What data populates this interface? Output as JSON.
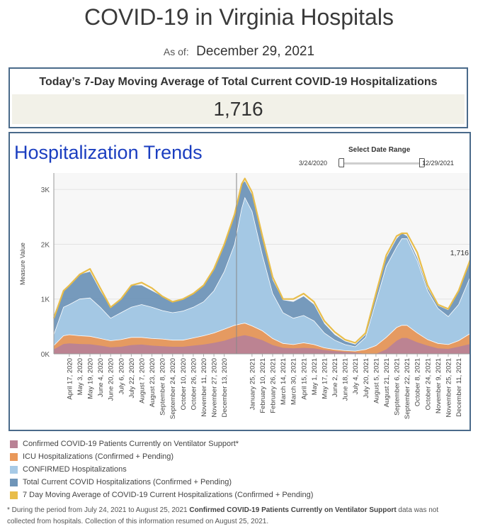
{
  "page": {
    "title": "COVID-19 in Virginia Hospitals",
    "as_of_label": "As of:",
    "as_of_date": "December 29, 2021"
  },
  "kpi": {
    "heading": "Today’s 7-Day Moving Average of Total Current COVID-19 Hospitalizations",
    "value": "1,716"
  },
  "trends": {
    "title": "Hospitalization Trends",
    "date_range": {
      "label": "Select Date Range",
      "start": "3/24/2020",
      "end": "12/29/2021"
    }
  },
  "footnote": {
    "prefix": "* During the period from July 24, 2021 to August 25, 2021 ",
    "bold": "Confirmed COVID-19 Patients Currently on Ventilator Support",
    "suffix": " data was not collected from hospitals. Collection of this information resumed on August 25, 2021."
  },
  "chart_data": {
    "type": "area",
    "ylabel": "Measure Value",
    "ylim": [
      0,
      3300
    ],
    "y_ticks": [
      {
        "value": 0,
        "label": "0K"
      },
      {
        "value": 1000,
        "label": "1K"
      },
      {
        "value": 2000,
        "label": "2K"
      },
      {
        "value": 3000,
        "label": "3K"
      }
    ],
    "x_ticks": [
      "April 17, 2020",
      "May 3, 2020",
      "May 19, 2020",
      "June 4, 2020",
      "June 20, 2020",
      "July 6, 2020",
      "July 22, 2020",
      "August 7, 2020",
      "August 23, 2020",
      "September 8, 2020",
      "September 24, 2020",
      "October 10, 2020",
      "October 26, 2020",
      "November 11, 2020",
      "November 27, 2020",
      "December 13, 2020",
      "January 25, 2021",
      "February 10, 2021",
      "February 26, 2021",
      "March 14, 2021",
      "March 30, 2021",
      "April 15, 2021",
      "May 1, 2021",
      "May 17, 2021",
      "June 2, 2021",
      "June 18, 2021",
      "July 4, 2021",
      "July 20, 2021",
      "August 5, 2021",
      "August 21, 2021",
      "September 6, 2021",
      "September 22, 2021",
      "October 8, 2021",
      "October 24, 2021",
      "November 9, 2021",
      "November 25, 2021",
      "December 11, 2021"
    ],
    "last_value_label": "1,716",
    "x": [
      "2020-03-24",
      "2020-04-08",
      "2020-04-17",
      "2020-05-03",
      "2020-05-19",
      "2020-06-04",
      "2020-06-20",
      "2020-07-06",
      "2020-07-22",
      "2020-08-07",
      "2020-08-23",
      "2020-09-08",
      "2020-09-24",
      "2020-10-10",
      "2020-10-26",
      "2020-11-11",
      "2020-11-27",
      "2020-12-13",
      "2020-12-29",
      "2021-01-09",
      "2021-01-14",
      "2021-01-25",
      "2021-02-10",
      "2021-02-26",
      "2021-03-14",
      "2021-03-30",
      "2021-04-15",
      "2021-05-01",
      "2021-05-17",
      "2021-06-02",
      "2021-06-18",
      "2021-07-04",
      "2021-07-20",
      "2021-08-05",
      "2021-08-21",
      "2021-09-06",
      "2021-09-14",
      "2021-09-22",
      "2021-10-08",
      "2021-10-24",
      "2021-11-09",
      "2021-11-25",
      "2021-12-11",
      "2021-12-29"
    ],
    "series": [
      {
        "name": "Confirmed COVID-19 Patients Currently on Ventilator Support*",
        "color": "#b98295",
        "values": [
          80,
          180,
          190,
          180,
          175,
          150,
          120,
          130,
          160,
          170,
          150,
          140,
          130,
          130,
          150,
          170,
          200,
          240,
          300,
          330,
          340,
          310,
          250,
          160,
          110,
          100,
          110,
          100,
          70,
          50,
          35,
          25,
          0,
          0,
          80,
          240,
          290,
          290,
          210,
          150,
          100,
          90,
          130,
          180
        ]
      },
      {
        "name": "ICU Hospitalizations (Confirmed + Pending)",
        "color": "#e9985a",
        "values": [
          150,
          330,
          350,
          330,
          320,
          280,
          240,
          260,
          300,
          300,
          280,
          270,
          250,
          250,
          290,
          330,
          380,
          450,
          520,
          550,
          560,
          510,
          420,
          280,
          190,
          170,
          200,
          170,
          110,
          80,
          60,
          50,
          80,
          150,
          300,
          480,
          520,
          520,
          380,
          260,
          190,
          170,
          240,
          370
        ]
      },
      {
        "name": "CONFIRMED Hospitalizations",
        "color": "#a7cae6",
        "values": [
          350,
          850,
          900,
          1000,
          1020,
          850,
          650,
          750,
          850,
          900,
          850,
          790,
          750,
          780,
          850,
          950,
          1150,
          1500,
          2000,
          2650,
          2850,
          2600,
          1800,
          1100,
          750,
          650,
          700,
          600,
          380,
          250,
          170,
          130,
          300,
          950,
          1600,
          1950,
          2100,
          2100,
          1700,
          1150,
          830,
          680,
          900,
          1400
        ]
      },
      {
        "name": "Total Current COVID Hospitalizations (Confirmed + Pending)",
        "color": "#6f95b8",
        "values": [
          700,
          1150,
          1250,
          1450,
          1500,
          1150,
          850,
          1000,
          1250,
          1250,
          1150,
          1050,
          950,
          1000,
          1100,
          1250,
          1550,
          2000,
          2550,
          3100,
          3150,
          2900,
          2100,
          1350,
          980,
          950,
          1050,
          900,
          550,
          350,
          230,
          170,
          350,
          1050,
          1750,
          2100,
          2200,
          2150,
          1750,
          1200,
          880,
          800,
          1150,
          1750
        ]
      },
      {
        "name": "7 Day Moving Average of COVID-19 Current Hospitalizations (Confirmed + Pending)",
        "color": "#e8bd4a",
        "values": [
          650,
          1150,
          1250,
          1450,
          1550,
          1200,
          850,
          1000,
          1250,
          1300,
          1200,
          1050,
          950,
          1000,
          1100,
          1250,
          1550,
          2000,
          2550,
          3100,
          3200,
          2950,
          2150,
          1400,
          1000,
          1000,
          1100,
          950,
          600,
          400,
          260,
          200,
          380,
          1100,
          1800,
          2150,
          2200,
          2200,
          1850,
          1250,
          900,
          820,
          1150,
          1716
        ]
      }
    ]
  }
}
